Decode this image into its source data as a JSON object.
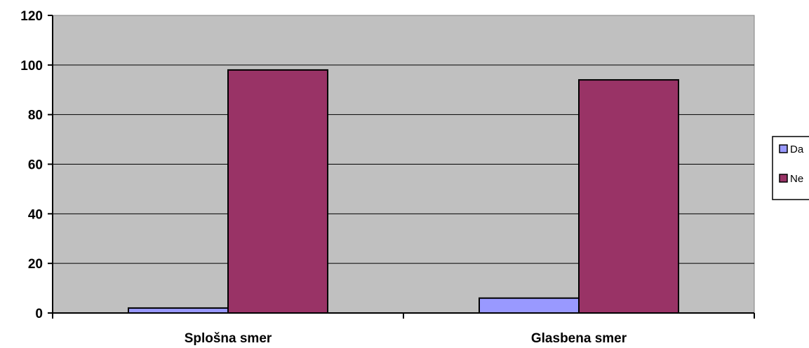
{
  "chart_data": {
    "type": "bar",
    "categories": [
      "Splošna smer",
      "Glasbena smer"
    ],
    "series": [
      {
        "name": "Da",
        "values": [
          2,
          6
        ],
        "color": "#9999ff"
      },
      {
        "name": "Ne",
        "values": [
          98,
          94
        ],
        "color": "#993366"
      }
    ],
    "ylim": [
      0,
      120
    ],
    "yticks": [
      "0",
      "20",
      "40",
      "60",
      "80",
      "100",
      "120"
    ],
    "grid": true,
    "plot_background": "#c0c0c0",
    "legend_position": "right",
    "title": "",
    "xlabel": "",
    "ylabel": ""
  }
}
